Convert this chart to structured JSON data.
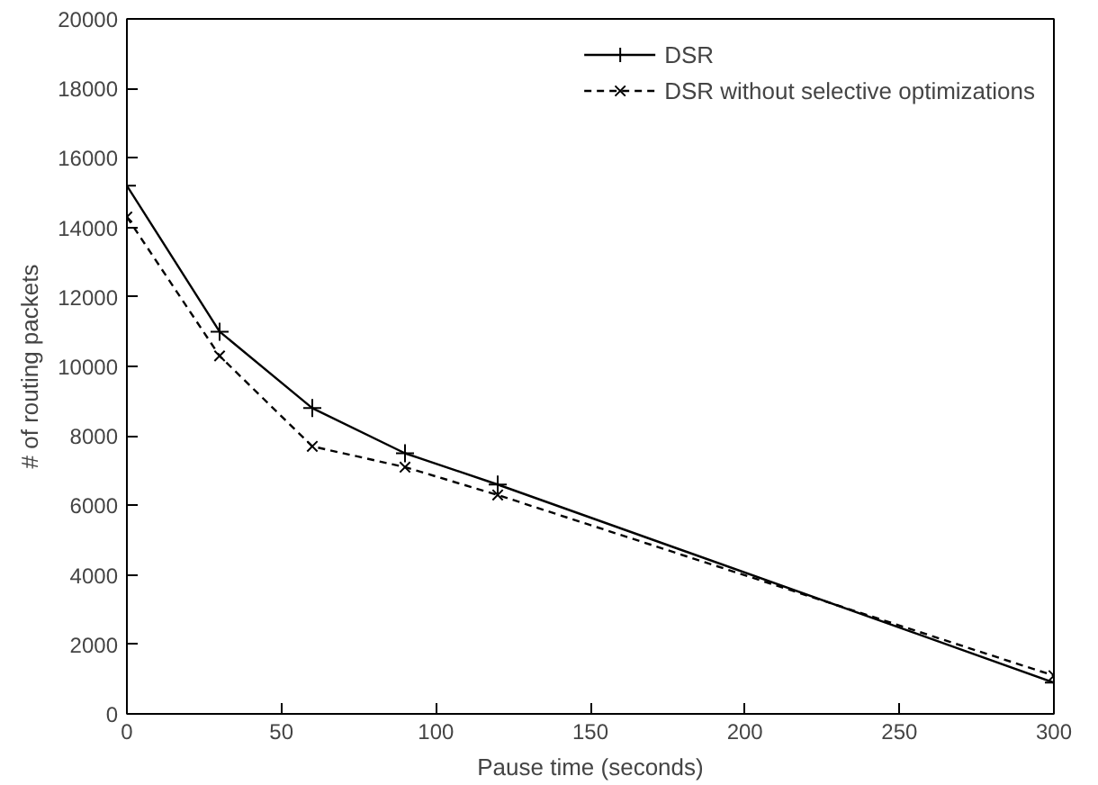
{
  "chart_data": {
    "type": "line",
    "xlabel": "Pause time (seconds)",
    "ylabel": "# of routing packets",
    "x": [
      0,
      30,
      60,
      90,
      120,
      300
    ],
    "series": [
      {
        "name": "DSR",
        "color": "#000000",
        "values": [
          15200,
          11000,
          8800,
          7500,
          6600,
          900
        ],
        "marker": "cross",
        "line_style": "solid"
      },
      {
        "name": "DSR without selective optimizations",
        "color": "#000000",
        "values": [
          14300,
          10300,
          7700,
          7100,
          6300,
          1100
        ],
        "marker": "x",
        "line_style": "dashed"
      }
    ],
    "xlim": [
      0,
      300
    ],
    "ylim": [
      0,
      20000
    ],
    "xticks": [
      0,
      50,
      100,
      150,
      200,
      250,
      300
    ],
    "yticks": [
      0,
      2000,
      4000,
      6000,
      8000,
      10000,
      12000,
      14000,
      16000,
      18000,
      20000
    ],
    "grid": false,
    "legend": "top right"
  }
}
